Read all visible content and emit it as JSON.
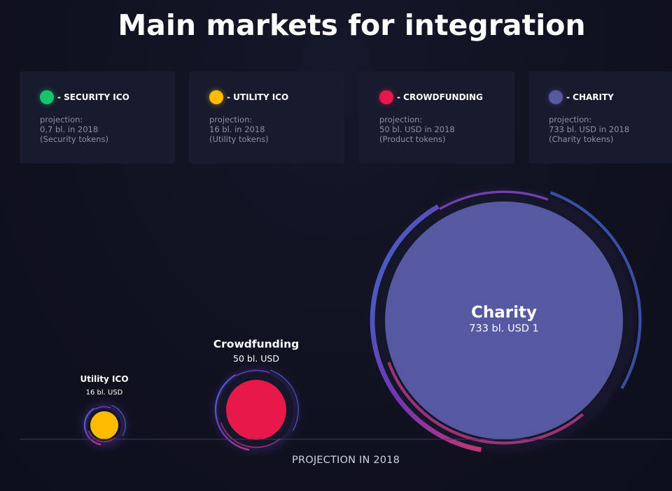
{
  "title": "Main markets for integration",
  "legend": [
    {
      "name": "- SECURITY ICO",
      "color": "#17c46e",
      "line1": "projection:",
      "line2": "0,7 bl. in 2018",
      "line3": "(Security tokens)"
    },
    {
      "name": "- UTILITY ICO",
      "color": "#ffbb00",
      "line1": "projection:",
      "line2": "16 bl. in 2018",
      "line3": "(Utility tokens)"
    },
    {
      "name": "- CROWDFUNDING",
      "color": "#e8194a",
      "line1": "projection:",
      "line2": "50 bl. USD in 2018",
      "line3": "(Product tokens)"
    },
    {
      "name": "- CHARITY",
      "color": "#5659a2",
      "line1": "projection:",
      "line2": "733 bl. USD in 2018",
      "line3": "(Charity tokens)"
    }
  ],
  "chart_data": {
    "type": "bubble",
    "title": "Main markets for integration",
    "xlabel": "PROJECTION IN 2018",
    "unit": "bl. USD",
    "series": [
      {
        "name": "Utility ICO",
        "value": 16,
        "value_label": "16 bl. USD",
        "color": "#ffbb00"
      },
      {
        "name": "Crowdfunding",
        "value": 50,
        "value_label": "50 bl. USD",
        "color": "#e8194a"
      },
      {
        "name": "Charity",
        "value": 733,
        "value_label": "733 bl. USD 1",
        "color": "#5659a2"
      }
    ]
  }
}
